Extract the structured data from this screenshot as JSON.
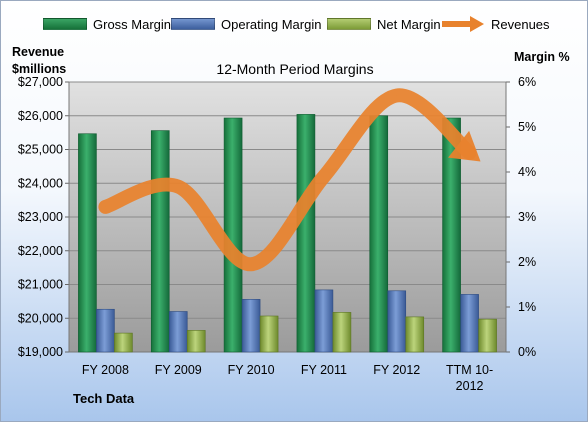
{
  "chart_data": {
    "type": "bar",
    "title": "12-Month Period Margins",
    "left_axis_label_line1": "Revenue",
    "left_axis_label_line2": "$millions",
    "right_axis_label": "Margin %",
    "source_label": "Tech Data",
    "categories": [
      "FY 2008",
      "FY 2009",
      "FY 2010",
      "FY 2011",
      "FY 2012",
      "TTM 10-2012"
    ],
    "category_lines": [
      [
        "FY 2008"
      ],
      [
        "FY 2009"
      ],
      [
        "FY 2010"
      ],
      [
        "FY 2011"
      ],
      [
        "FY 2012"
      ],
      [
        "TTM 10-",
        "2012"
      ]
    ],
    "y_left": {
      "min": 19000,
      "max": 27000,
      "step": 1000,
      "tick_labels": [
        "$19,000",
        "$20,000",
        "$21,000",
        "$22,000",
        "$23,000",
        "$24,000",
        "$25,000",
        "$26,000",
        "$27,000"
      ]
    },
    "y_right": {
      "min": 0,
      "max": 6,
      "step": 1,
      "tick_labels": [
        "0%",
        "1%",
        "2%",
        "3%",
        "4%",
        "5%",
        "6%"
      ]
    },
    "series": [
      {
        "name": "Gross Margin",
        "axis": "right",
        "color": "#1f8a4a",
        "values": [
          4.85,
          4.92,
          5.2,
          5.28,
          5.25,
          5.2
        ]
      },
      {
        "name": "Operating Margin",
        "axis": "right",
        "color": "#4e72b8",
        "values": [
          0.95,
          0.9,
          1.17,
          1.38,
          1.36,
          1.28
        ]
      },
      {
        "name": "Net Margin",
        "axis": "right",
        "color": "#8fb04a",
        "values": [
          0.42,
          0.48,
          0.8,
          0.88,
          0.78,
          0.73
        ]
      },
      {
        "name": "Revenues",
        "axis": "left",
        "type": "line",
        "color": "#e8822d",
        "values": [
          23300,
          23900,
          21600,
          24200,
          26600,
          24900
        ]
      }
    ],
    "grid": true,
    "legend_position": "top"
  }
}
